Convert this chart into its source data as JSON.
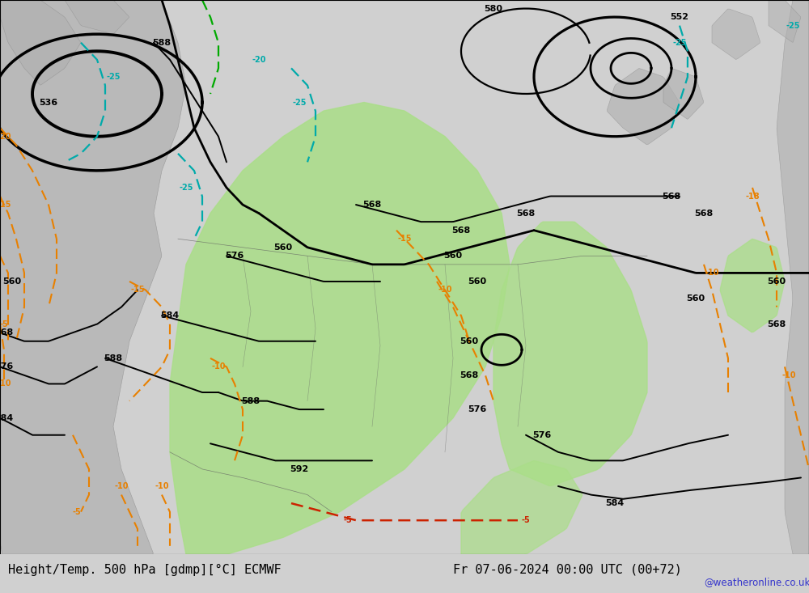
{
  "title_left": "Height/Temp. 500 hPa [gdmp][°C] ECMWF",
  "title_right": "Fr 07-06-2024 00:00 UTC (00+72)",
  "watermark": "@weatheronline.co.uk",
  "bg_color": "#d0d0d0",
  "map_bg_color": "#c8c8c8",
  "green_color": "#aade88",
  "title_bg": "#c0c0c0",
  "fig_width": 10.0,
  "fig_height": 7.33,
  "dpi": 100,
  "black_lw": 2.0,
  "thin_lw": 1.4,
  "orange": "#e88000",
  "cyan_t": "#00aaaa",
  "red_t": "#cc2200",
  "green_t": "#00aa00"
}
